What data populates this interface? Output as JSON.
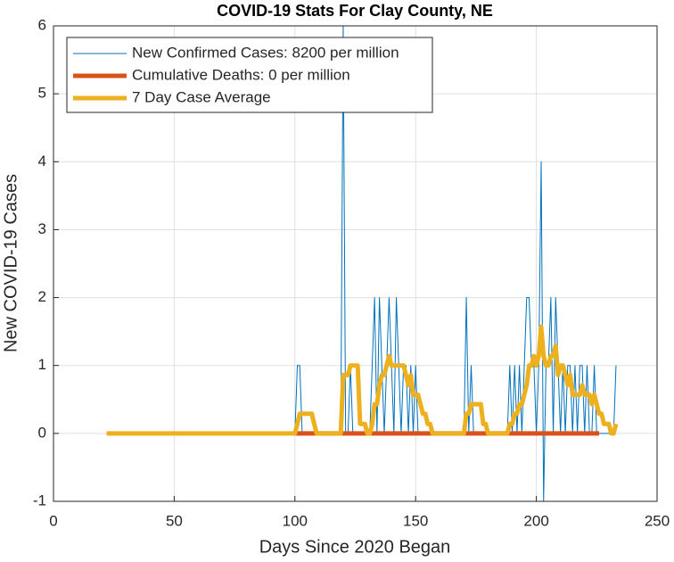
{
  "chart_data": {
    "type": "line",
    "title": "COVID-19 Stats For Clay County, NE",
    "x_label": "Days Since 2020 Began",
    "y_label": "New COVID-19 Cases",
    "xlim": [
      0,
      250
    ],
    "ylim": [
      -1,
      6
    ],
    "xticks": [
      0,
      50,
      100,
      150,
      200,
      250
    ],
    "yticks": [
      -1,
      0,
      1,
      2,
      3,
      4,
      5,
      6
    ],
    "grid": true,
    "legend": "top-left",
    "x": [
      22,
      23,
      24,
      25,
      26,
      27,
      28,
      29,
      30,
      31,
      32,
      33,
      34,
      35,
      36,
      37,
      38,
      39,
      40,
      41,
      42,
      43,
      44,
      45,
      46,
      47,
      48,
      49,
      50,
      51,
      52,
      53,
      54,
      55,
      56,
      57,
      58,
      59,
      60,
      61,
      62,
      63,
      64,
      65,
      66,
      67,
      68,
      69,
      70,
      71,
      72,
      73,
      74,
      75,
      76,
      77,
      78,
      79,
      80,
      81,
      82,
      83,
      84,
      85,
      86,
      87,
      88,
      89,
      90,
      91,
      92,
      93,
      94,
      95,
      96,
      97,
      98,
      99,
      100,
      101,
      102,
      103,
      104,
      105,
      106,
      107,
      108,
      109,
      110,
      111,
      112,
      113,
      114,
      115,
      116,
      117,
      118,
      119,
      120,
      121,
      122,
      123,
      124,
      125,
      126,
      127,
      128,
      129,
      130,
      131,
      132,
      133,
      134,
      135,
      136,
      137,
      138,
      139,
      140,
      141,
      142,
      143,
      144,
      145,
      146,
      147,
      148,
      149,
      150,
      151,
      152,
      153,
      154,
      155,
      156,
      157,
      158,
      159,
      160,
      161,
      162,
      163,
      164,
      165,
      166,
      167,
      168,
      169,
      170,
      171,
      172,
      173,
      174,
      175,
      176,
      177,
      178,
      179,
      180,
      181,
      182,
      183,
      184,
      185,
      186,
      187,
      188,
      189,
      190,
      191,
      192,
      193,
      194,
      195,
      196,
      197,
      198,
      199,
      200,
      201,
      202,
      203,
      204,
      205,
      206,
      207,
      208,
      209,
      210,
      211,
      212,
      213,
      214,
      215,
      216,
      217,
      218,
      219,
      220,
      221,
      222,
      223,
      224,
      225,
      226,
      227,
      228,
      229,
      230,
      231,
      232,
      233
    ],
    "series": [
      {
        "name": "New Confirmed Cases: 8200 per million",
        "color": "#0072bd",
        "width": 1,
        "values": [
          0,
          0,
          0,
          0,
          0,
          0,
          0,
          0,
          0,
          0,
          0,
          0,
          0,
          0,
          0,
          0,
          0,
          0,
          0,
          0,
          0,
          0,
          0,
          0,
          0,
          0,
          0,
          0,
          0,
          0,
          0,
          0,
          0,
          0,
          0,
          0,
          0,
          0,
          0,
          0,
          0,
          0,
          0,
          0,
          0,
          0,
          0,
          0,
          0,
          0,
          0,
          0,
          0,
          0,
          0,
          0,
          0,
          0,
          0,
          0,
          0,
          0,
          0,
          0,
          0,
          0,
          0,
          0,
          0,
          0,
          0,
          0,
          0,
          0,
          0,
          0,
          0,
          0,
          0,
          1,
          1,
          0,
          0,
          0,
          0,
          0,
          0,
          0,
          0,
          0,
          0,
          0,
          0,
          0,
          0,
          0,
          0,
          0,
          6,
          0,
          0,
          1,
          0,
          0,
          0,
          0,
          0,
          0,
          0,
          0,
          1,
          2,
          0,
          2,
          1,
          0,
          1,
          2,
          1,
          0,
          2,
          1,
          0,
          1,
          1,
          0,
          1,
          0,
          1,
          0,
          0,
          0,
          0,
          0,
          0,
          0,
          0,
          0,
          0,
          0,
          0,
          0,
          0,
          0,
          0,
          0,
          0,
          0,
          0,
          2,
          0,
          1,
          0,
          0,
          0,
          0,
          0,
          0,
          0,
          0,
          0,
          0,
          0,
          0,
          0,
          0,
          0,
          1,
          0,
          1,
          0,
          1,
          0,
          1,
          2,
          2,
          1,
          1,
          0,
          1,
          4,
          -1,
          1,
          1,
          2,
          0,
          2,
          1,
          0,
          1,
          0,
          1,
          1,
          0,
          1,
          0,
          1,
          1,
          0,
          1,
          0,
          0,
          1,
          0,
          0,
          0,
          0,
          0,
          0,
          0,
          0,
          1
        ]
      },
      {
        "name": "Cumulative Deaths: 0 per million",
        "color": "#d95319",
        "width": 5,
        "values": [
          null,
          null,
          null,
          null,
          null,
          null,
          null,
          null,
          null,
          null,
          null,
          null,
          null,
          null,
          null,
          null,
          null,
          null,
          null,
          null,
          null,
          null,
          null,
          null,
          null,
          null,
          null,
          null,
          null,
          null,
          null,
          null,
          null,
          null,
          null,
          null,
          null,
          null,
          null,
          null,
          null,
          null,
          null,
          null,
          null,
          null,
          null,
          null,
          null,
          null,
          null,
          null,
          null,
          null,
          null,
          null,
          null,
          null,
          null,
          null,
          null,
          null,
          null,
          null,
          null,
          null,
          null,
          null,
          null,
          null,
          null,
          null,
          null,
          null,
          null,
          null,
          null,
          null,
          0,
          0,
          0,
          0,
          0,
          0,
          0,
          0,
          0,
          0,
          0,
          0,
          0,
          0,
          0,
          0,
          0,
          0,
          0,
          0,
          0,
          0,
          0,
          0,
          0,
          0,
          0,
          0,
          0,
          0,
          0,
          0,
          0,
          0,
          0,
          0,
          0,
          0,
          0,
          0,
          0,
          0,
          0,
          0,
          0,
          0,
          0,
          0,
          0,
          0,
          0,
          0,
          0,
          0,
          0,
          0,
          0,
          0,
          0,
          0,
          0,
          0,
          0,
          0,
          0,
          0,
          0,
          0,
          0,
          0,
          0,
          0,
          0,
          0,
          0,
          0,
          0,
          0,
          0,
          0,
          0,
          0,
          0,
          0,
          0,
          0,
          0,
          0,
          0,
          0,
          0,
          0,
          0,
          0,
          0,
          0,
          0,
          0,
          0,
          0,
          0,
          0,
          0,
          0,
          0,
          0,
          0,
          0,
          0,
          0,
          0,
          0,
          0,
          0,
          0,
          0,
          0,
          0,
          0,
          0,
          0,
          0,
          0,
          0,
          0,
          0,
          0,
          null,
          null,
          null,
          null,
          null,
          null,
          null
        ]
      },
      {
        "name": "7 Day Case Average",
        "color": "#edb120",
        "width": 5,
        "values": [
          0,
          0,
          0,
          0,
          0,
          0,
          0,
          0,
          0,
          0,
          0,
          0,
          0,
          0,
          0,
          0,
          0,
          0,
          0,
          0,
          0,
          0,
          0,
          0,
          0,
          0,
          0,
          0,
          0,
          0,
          0,
          0,
          0,
          0,
          0,
          0,
          0,
          0,
          0,
          0,
          0,
          0,
          0,
          0,
          0,
          0,
          0,
          0,
          0,
          0,
          0,
          0,
          0,
          0,
          0,
          0,
          0,
          0,
          0,
          0,
          0,
          0,
          0,
          0,
          0,
          0,
          0,
          0,
          0,
          0,
          0,
          0,
          0,
          0,
          0,
          0,
          0,
          0,
          0,
          0.14,
          0.29,
          0.29,
          0.29,
          0.29,
          0.29,
          0.29,
          0.14,
          0,
          0,
          0,
          0,
          0,
          0,
          0,
          0,
          0,
          0,
          0,
          0.86,
          0.86,
          0.86,
          1,
          1,
          1,
          1,
          0.14,
          0.14,
          0.14,
          0,
          0,
          0.14,
          0.43,
          0.43,
          0.71,
          0.86,
          0.86,
          1,
          1.14,
          1,
          1,
          1,
          1,
          1,
          1,
          0.86,
          0.71,
          0.86,
          0.57,
          0.57,
          0.57,
          0.43,
          0.29,
          0.29,
          0.14,
          0.14,
          0,
          0,
          0,
          0,
          0,
          0,
          0,
          0,
          0,
          0,
          0,
          0,
          0,
          0,
          0.29,
          0.29,
          0.43,
          0.43,
          0.43,
          0.43,
          0.43,
          0.14,
          0.14,
          0,
          0,
          0,
          0,
          0,
          0,
          0,
          0,
          0,
          0.14,
          0.14,
          0.29,
          0.29,
          0.43,
          0.43,
          0.57,
          0.71,
          1,
          1,
          1.14,
          1,
          1.14,
          1.57,
          1.14,
          1,
          1,
          1.14,
          1.14,
          1.29,
          0.86,
          1,
          1,
          0.86,
          0.71,
          0.86,
          0.57,
          0.57,
          0.57,
          0.57,
          0.71,
          0.57,
          0.57,
          0.57,
          0.43,
          0.57,
          0.43,
          0.29,
          0.29,
          0.14,
          0.14,
          0.14,
          0,
          0,
          0.14
        ]
      }
    ]
  }
}
